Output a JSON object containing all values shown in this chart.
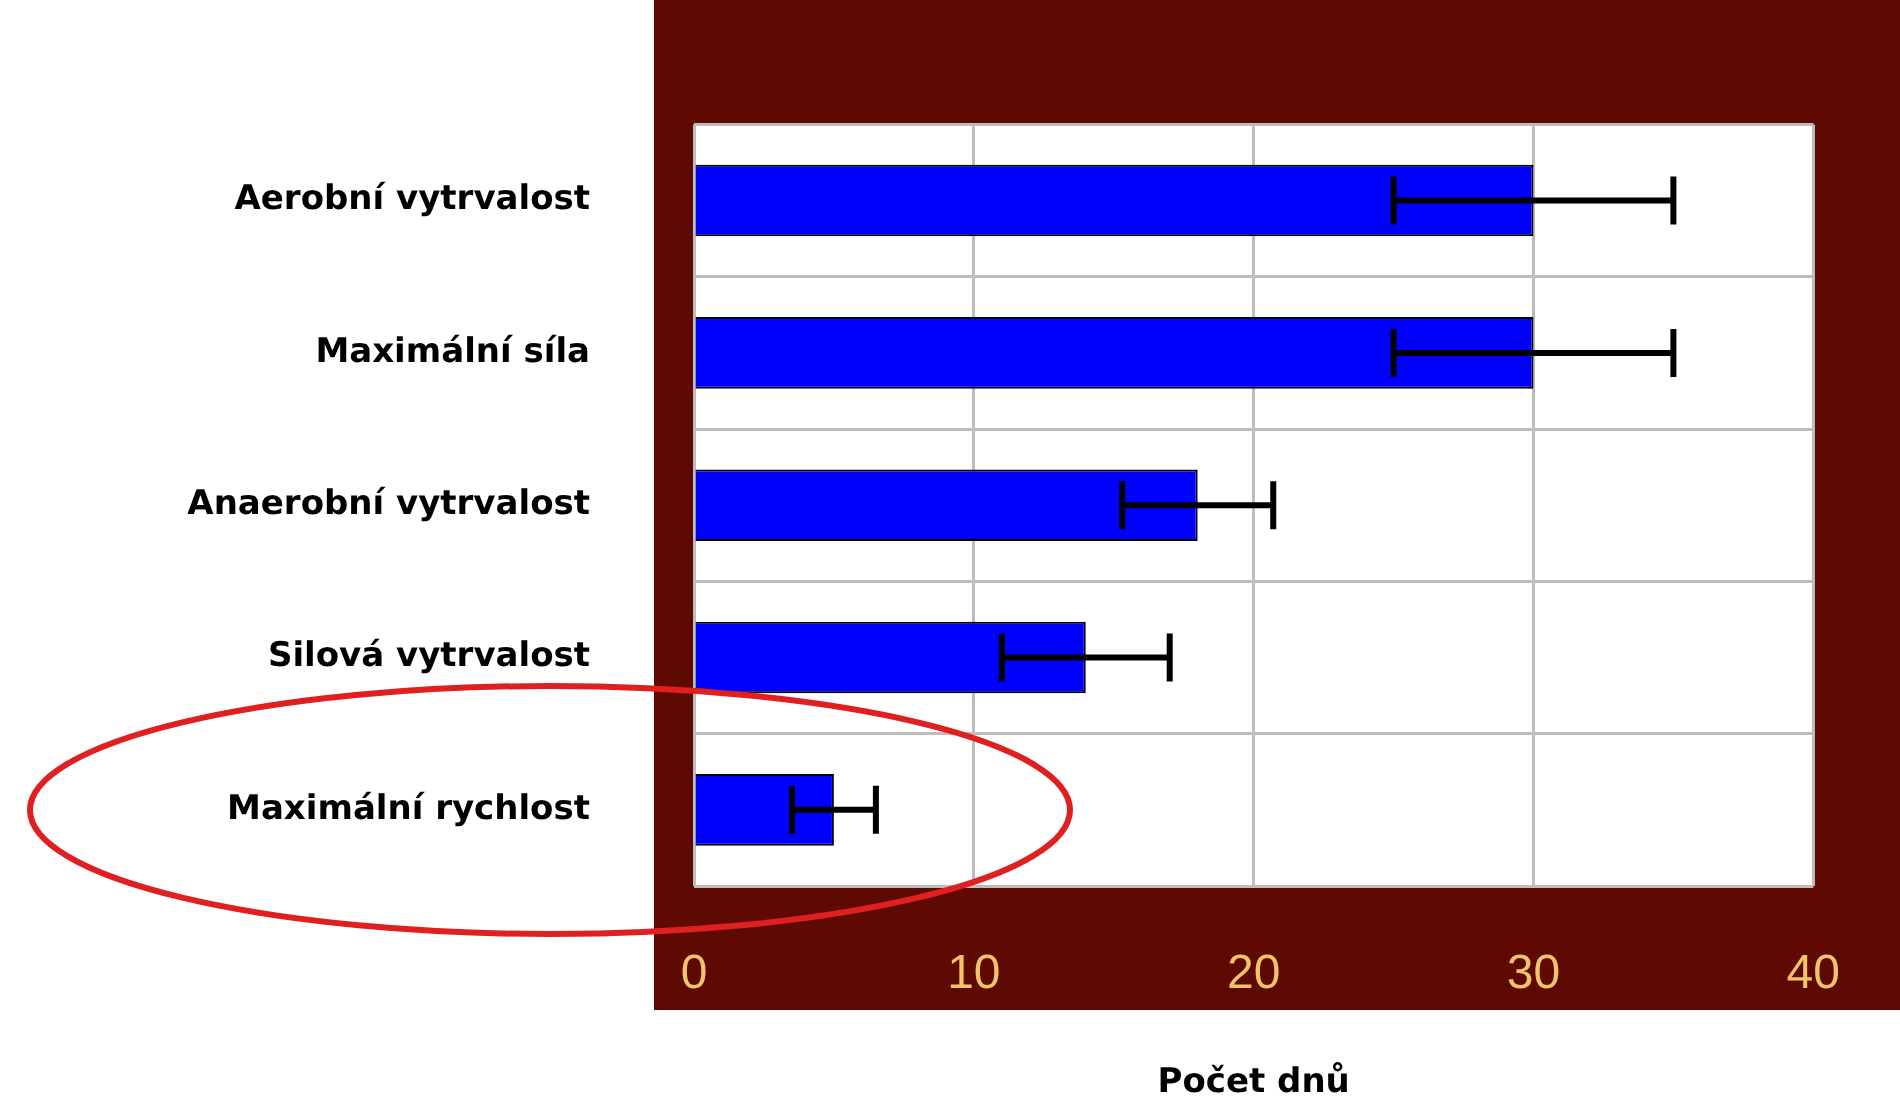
{
  "chart_data": {
    "type": "bar",
    "orientation": "horizontal",
    "xlabel": "Počet dnů",
    "categories": [
      "Aerobní vytrvalost",
      "Maximální síla",
      "Anaerobní vytrvalost",
      "Silová vytrvalost",
      "Maximální rychlost"
    ],
    "values": [
      30,
      30,
      18,
      14,
      5
    ],
    "errors": [
      5,
      5,
      2.7,
      3,
      1.5
    ],
    "color": "#0000ff",
    "xlim": [
      0,
      40
    ],
    "xticks": [
      0,
      10,
      20,
      30,
      40
    ],
    "grid": true
  }
}
